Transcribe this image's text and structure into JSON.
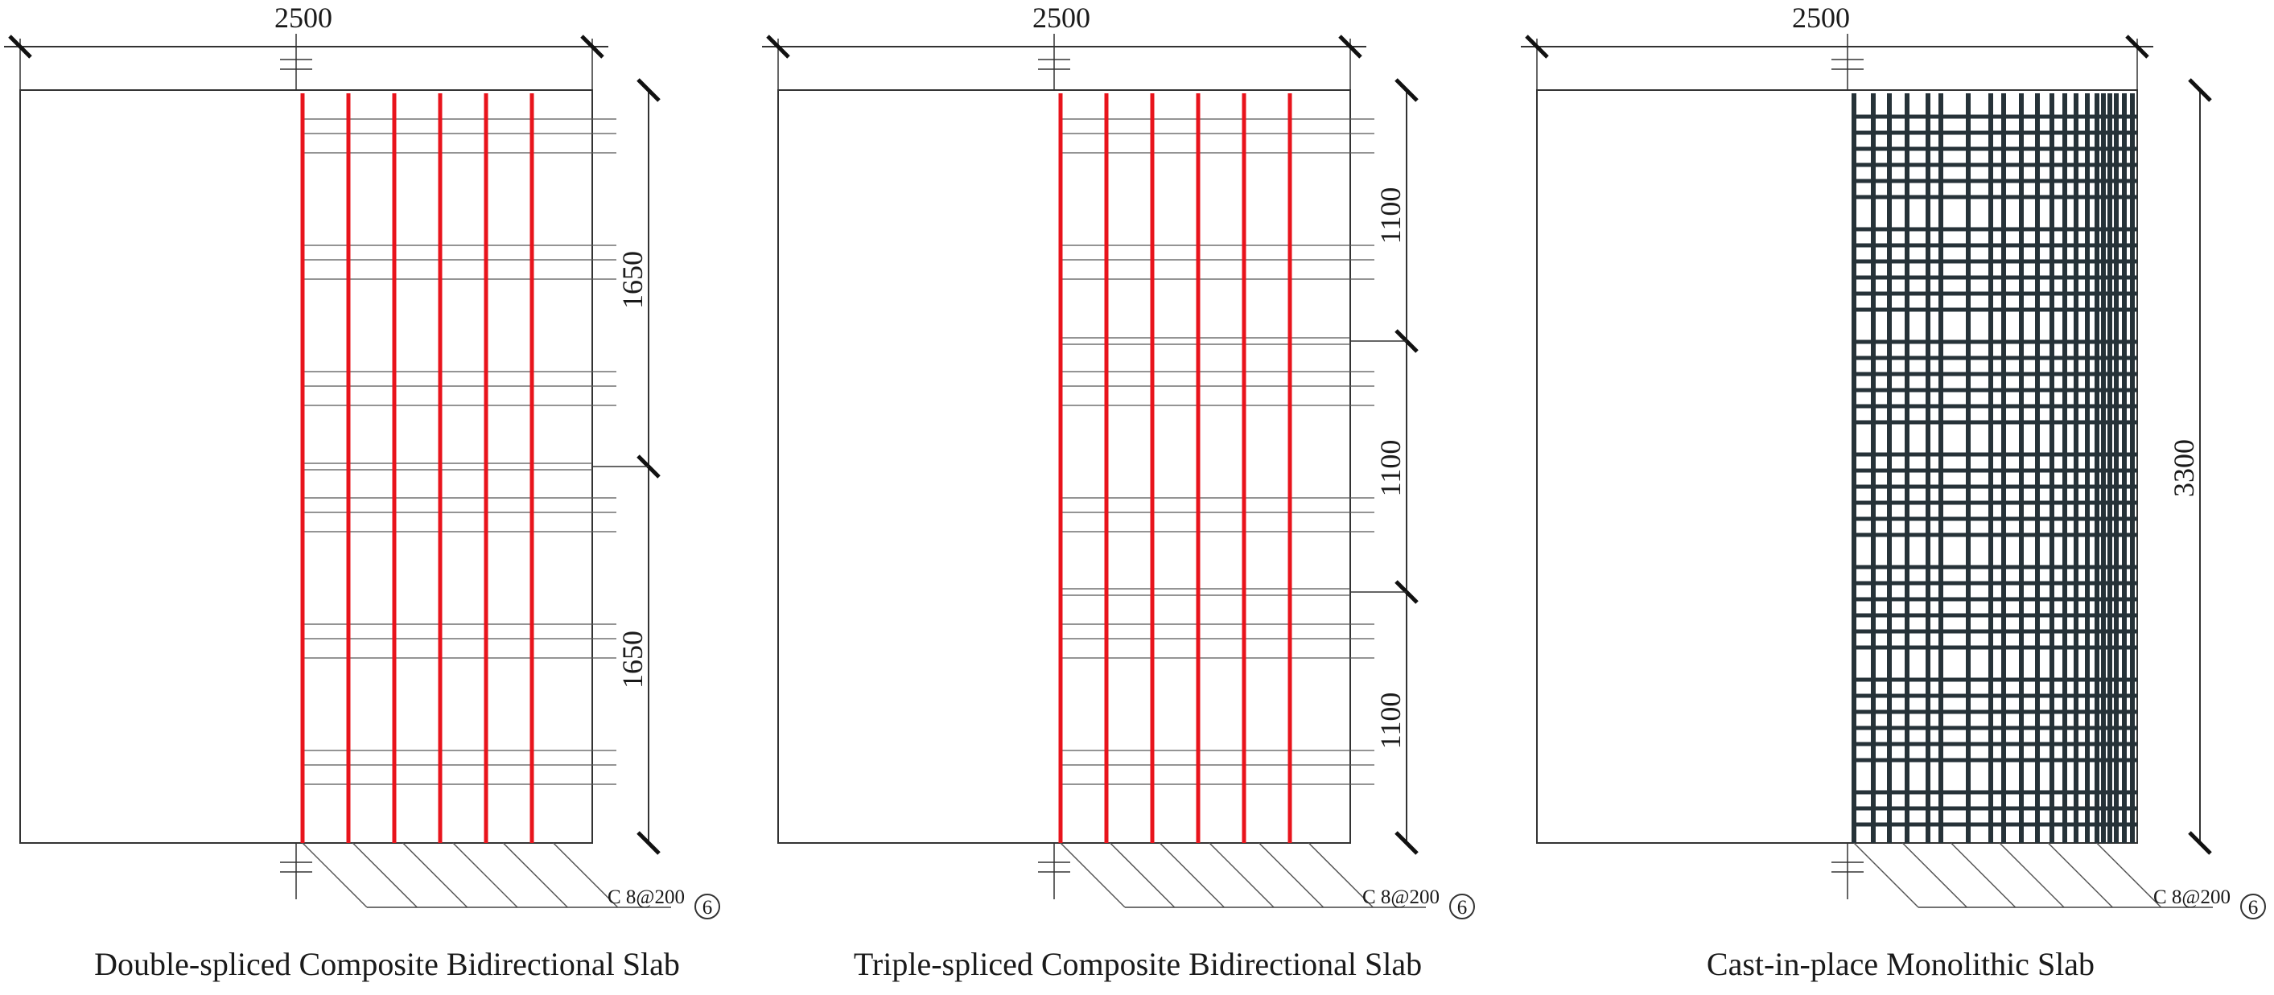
{
  "colors": {
    "outline": "#333333",
    "thin_line": "#555555",
    "composite_rebar": "#e8141c",
    "monolithic_rebar": "#263238"
  },
  "panels": [
    {
      "caption": "Double-spliced Composite Bidirectional Slab",
      "width_label": "2500",
      "segment_labels": [
        "1650",
        "1650"
      ],
      "rebar_label": "C 8@200",
      "rebar_mark": "6",
      "splices": 2
    },
    {
      "caption": "Triple-spliced Composite Bidirectional Slab",
      "width_label": "2500",
      "segment_labels": [
        "1100",
        "1100",
        "1100"
      ],
      "rebar_label": "C 8@200",
      "rebar_mark": "6",
      "splices": 3
    },
    {
      "caption": "Cast-in-place Monolithic Slab",
      "width_label": "2500",
      "segment_labels": [
        "3300"
      ],
      "rebar_label": "C 8@200",
      "rebar_mark": "6",
      "splices": 1
    }
  ]
}
